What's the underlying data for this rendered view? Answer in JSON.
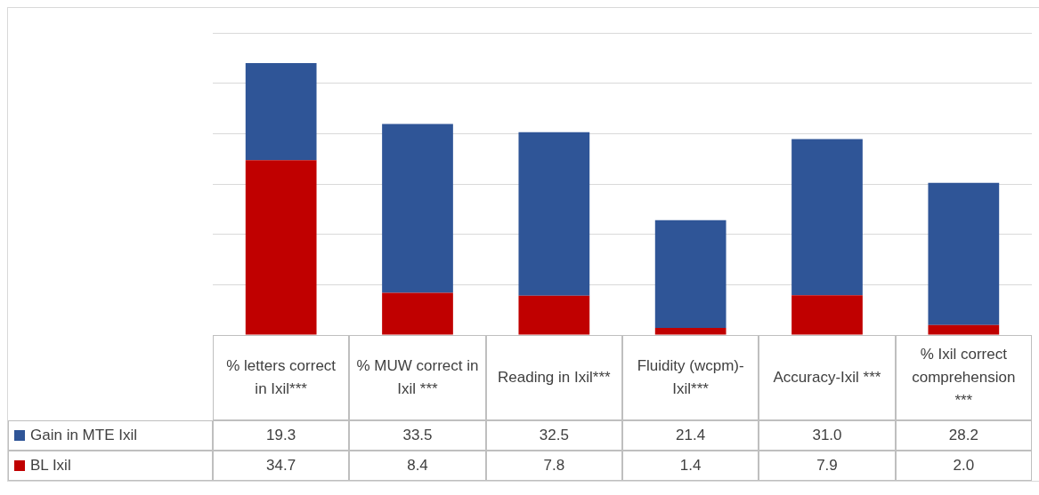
{
  "chart_data": {
    "type": "bar",
    "stacked": true,
    "categories": [
      "% letters correct in Ixil***",
      "% MUW correct in Ixil ***",
      "Reading in Ixil***",
      "Fluidity (wcpm)-Ixil***",
      "Accuracy-Ixil ***",
      "% Ixil correct comprehension ***"
    ],
    "series": [
      {
        "name": "BL Ixil",
        "color": "#c00000",
        "values": [
          34.7,
          8.4,
          7.8,
          1.4,
          7.9,
          2.0
        ],
        "value_labels": [
          "34.7",
          "8.4",
          "7.8",
          "1.4",
          "7.9",
          "2.0"
        ]
      },
      {
        "name": "Gain in MTE Ixil",
        "color": "#2f5597",
        "values": [
          19.3,
          33.5,
          32.5,
          21.4,
          31.0,
          28.2
        ],
        "value_labels": [
          "19.3",
          "33.5",
          "32.5",
          "21.4",
          "31.0",
          "28.2"
        ]
      }
    ],
    "grid": "y",
    "tick_labels": "x",
    "legend": "bottom left"
  }
}
